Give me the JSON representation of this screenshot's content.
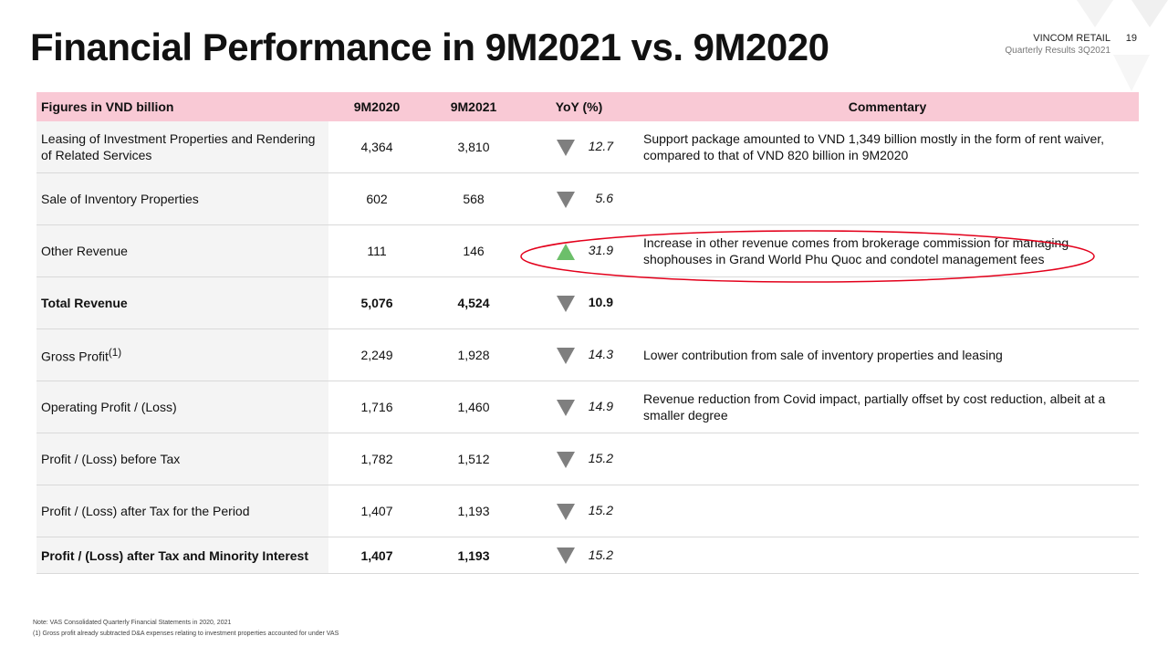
{
  "header": {
    "title": "Financial Performance in 9M2021 vs. 9M2020",
    "company": "VINCOM RETAIL",
    "page": "19",
    "subtitle": "Quarterly Results 3Q2021"
  },
  "table": {
    "columns": [
      "Figures in VND billion",
      "9M2020",
      "9M2021",
      "YoY (%)",
      "Commentary"
    ],
    "rows": [
      {
        "label": "Leasing of Investment Properties and Rendering of Related Services",
        "v2020": "4,364",
        "v2021": "3,810",
        "trend": "down",
        "yoy": "12.7",
        "commentary": "Support package amounted to VND 1,349 billion mostly in the form of rent waiver, compared to that of VND 820 billion in 9M2020"
      },
      {
        "label": "Sale of Inventory Properties",
        "v2020": "602",
        "v2021": "568",
        "trend": "down",
        "yoy": "5.6"
      },
      {
        "label": "Other Revenue",
        "v2020": "111",
        "v2021": "146",
        "trend": "up",
        "yoy": "31.9",
        "commentary": "Increase in other revenue comes from brokerage commission for managing shophouses in Grand World Phu Quoc and condotel management fees"
      },
      {
        "label": "Total Revenue",
        "v2020": "5,076",
        "v2021": "4,524",
        "trend": "down",
        "yoy": "10.9",
        "bold": true
      },
      {
        "label": "Gross Profit",
        "sup": "(1)",
        "v2020": "2,249",
        "v2021": "1,928",
        "trend": "down",
        "yoy": "14.3",
        "commentary": "Lower contribution from sale of inventory properties and leasing"
      },
      {
        "label": "Operating Profit / (Loss)",
        "v2020": "1,716",
        "v2021": "1,460",
        "trend": "down",
        "yoy": "14.9",
        "commentary": "Revenue reduction from Covid impact, partially offset by cost reduction, albeit at a smaller degree"
      },
      {
        "label": "Profit / (Loss) before Tax",
        "v2020": "1,782",
        "v2021": "1,512",
        "trend": "down",
        "yoy": "15.2"
      },
      {
        "label": "Profit / (Loss) after Tax for the Period",
        "v2020": "1,407",
        "v2021": "1,193",
        "trend": "down",
        "yoy": "15.2"
      },
      {
        "label": "Profit / (Loss) after Tax and Minority Interest",
        "v2020": "1,407",
        "v2021": "1,193",
        "trend": "down",
        "yoy": "15.2",
        "bold": true,
        "yoy_plain": false
      }
    ]
  },
  "notes": [
    "Note: VAS Consolidated Quarterly Financial Statements in 2020, 2021",
    "(1) Gross profit already subtracted D&A expenses relating to investment properties accounted for under VAS"
  ]
}
